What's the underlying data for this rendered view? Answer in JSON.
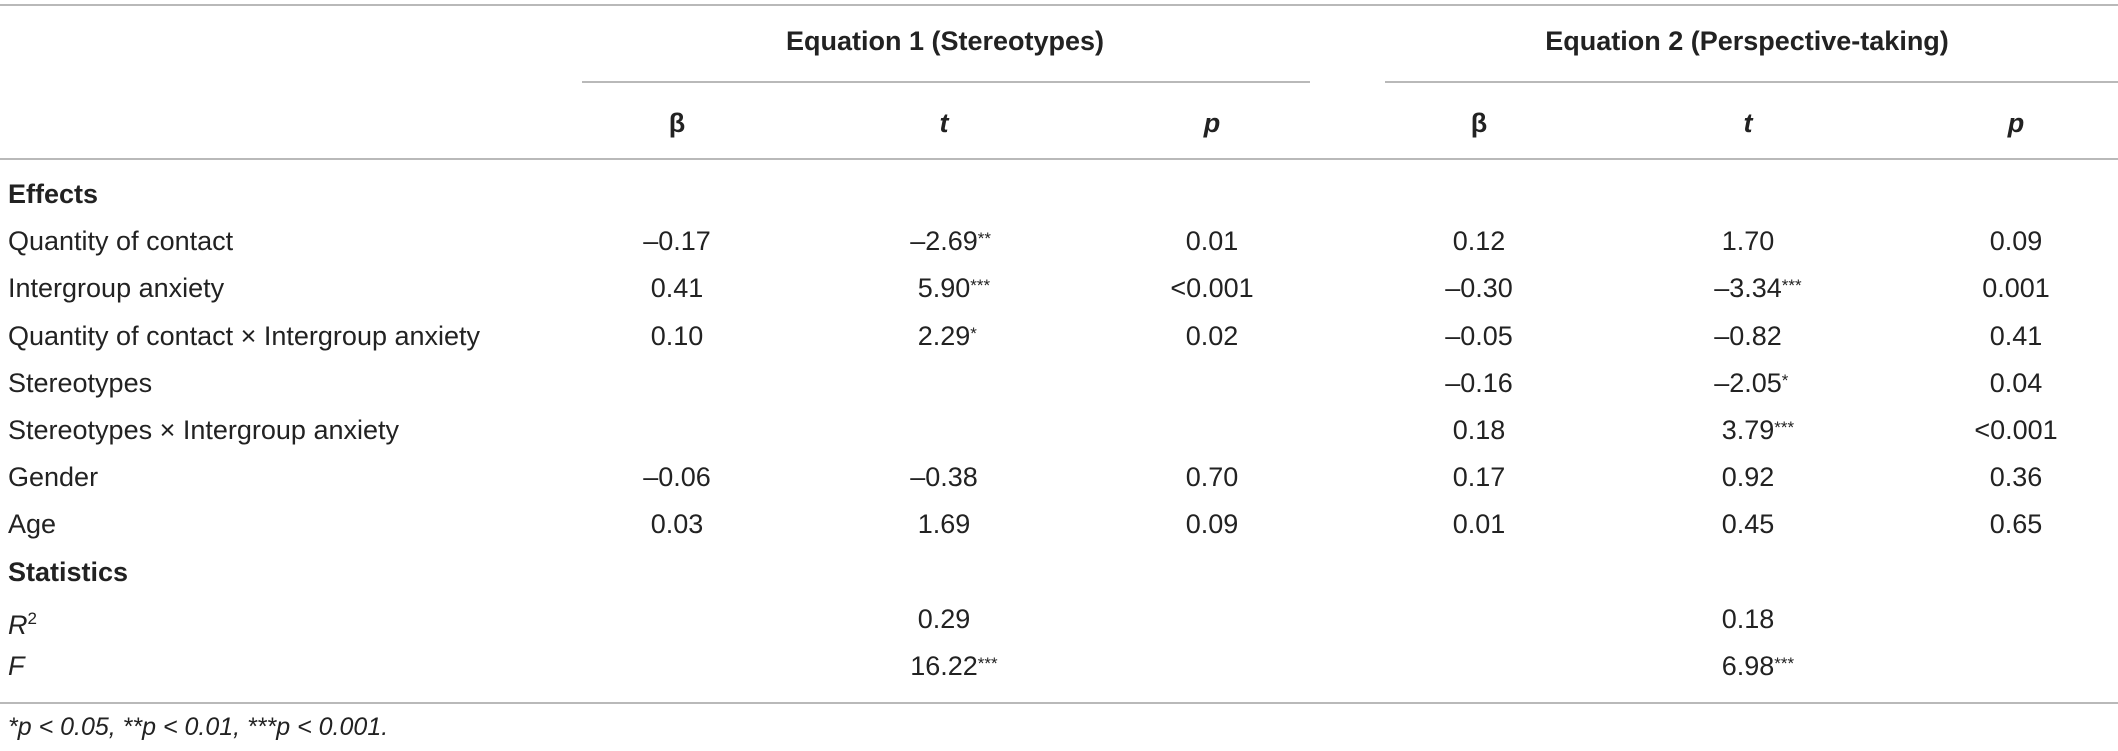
{
  "table": {
    "group_headers": [
      "Equation 1 (Stereotypes)",
      "Equation 2 (Perspective-taking)"
    ],
    "column_headers": [
      "β",
      "t",
      "p",
      "β",
      "t",
      "p"
    ],
    "sections": [
      {
        "title": "Effects",
        "rows": [
          {
            "label": "Quantity of contact",
            "cells": [
              {
                "v": "–0.17"
              },
              {
                "v": "–2.69",
                "s": "**"
              },
              {
                "v": "0.01"
              },
              {
                "v": "0.12"
              },
              {
                "v": "1.70"
              },
              {
                "v": "0.09"
              }
            ]
          },
          {
            "label": "Intergroup anxiety",
            "cells": [
              {
                "v": "0.41"
              },
              {
                "v": "5.90",
                "s": "***"
              },
              {
                "v": "<0.001"
              },
              {
                "v": "–0.30"
              },
              {
                "v": "–3.34",
                "s": "***"
              },
              {
                "v": "0.001"
              }
            ]
          },
          {
            "label": "Quantity of contact × Intergroup anxiety",
            "cells": [
              {
                "v": "0.10"
              },
              {
                "v": "2.29",
                "s": "*"
              },
              {
                "v": "0.02"
              },
              {
                "v": "–0.05"
              },
              {
                "v": "–0.82"
              },
              {
                "v": "0.41"
              }
            ]
          },
          {
            "label": "Stereotypes",
            "cells": [
              {
                "v": ""
              },
              {
                "v": ""
              },
              {
                "v": ""
              },
              {
                "v": "–0.16"
              },
              {
                "v": "–2.05",
                "s": "*"
              },
              {
                "v": "0.04"
              }
            ]
          },
          {
            "label": "Stereotypes × Intergroup anxiety",
            "cells": [
              {
                "v": ""
              },
              {
                "v": ""
              },
              {
                "v": ""
              },
              {
                "v": "0.18"
              },
              {
                "v": "3.79",
                "s": "***"
              },
              {
                "v": "<0.001"
              }
            ]
          },
          {
            "label": "Gender",
            "cells": [
              {
                "v": "–0.06"
              },
              {
                "v": "–0.38"
              },
              {
                "v": "0.70"
              },
              {
                "v": "0.17"
              },
              {
                "v": "0.92"
              },
              {
                "v": "0.36"
              }
            ]
          },
          {
            "label": "Age",
            "cells": [
              {
                "v": "0.03"
              },
              {
                "v": "1.69"
              },
              {
                "v": "0.09"
              },
              {
                "v": "0.01"
              },
              {
                "v": "0.45"
              },
              {
                "v": "0.65"
              }
            ]
          }
        ]
      },
      {
        "title": "Statistics",
        "rows": [
          {
            "label": "R",
            "label_sup": "2",
            "label_italic": true,
            "cells": [
              {
                "v": ""
              },
              {
                "v": "0.29"
              },
              {
                "v": ""
              },
              {
                "v": ""
              },
              {
                "v": "0.18"
              },
              {
                "v": ""
              }
            ]
          },
          {
            "label": "F",
            "label_italic": true,
            "cells": [
              {
                "v": ""
              },
              {
                "v": "16.22",
                "s": "***"
              },
              {
                "v": ""
              },
              {
                "v": ""
              },
              {
                "v": "6.98",
                "s": "***"
              },
              {
                "v": ""
              }
            ]
          }
        ]
      }
    ],
    "footnote": "*p < 0.05, **p < 0.01, ***p < 0.001."
  }
}
